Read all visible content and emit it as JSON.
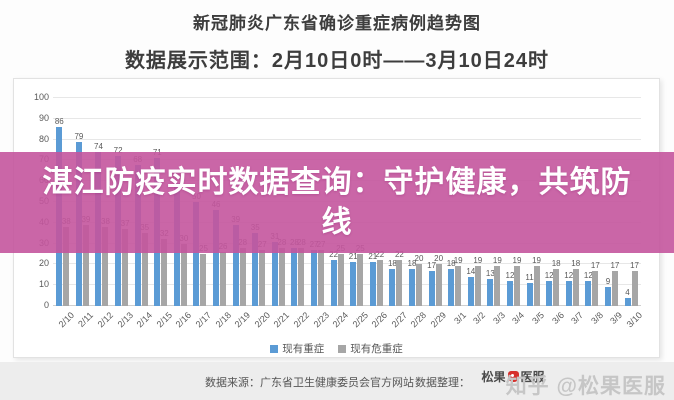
{
  "header": {
    "title": "新冠肺炎广东省确诊重症病例趋势图",
    "subtitle": "数据展示范围：2月10日0时——3月10日24时"
  },
  "overlay": {
    "text": "湛江防疫实时数据查询：守护健康，共筑防线"
  },
  "chart_data": {
    "type": "bar",
    "title": "新冠肺炎广东省确诊重症病例趋势图",
    "categories": [
      "2/10",
      "2/11",
      "2/12",
      "2/13",
      "2/14",
      "2/15",
      "2/16",
      "2/17",
      "2/18",
      "2/19",
      "2/20",
      "2/21",
      "2/22",
      "2/23",
      "2/24",
      "2/25",
      "2/26",
      "2/27",
      "2/28",
      "2/29",
      "3/1",
      "3/2",
      "3/3",
      "3/4",
      "3/5",
      "3/6",
      "3/7",
      "3/8",
      "3/9",
      "3/10"
    ],
    "series": [
      {
        "name": "现有重症",
        "color": "#5B9BD5",
        "values": [
          86,
          79,
          74,
          72,
          68,
          71,
          59,
          50,
          46,
          39,
          35,
          31,
          28,
          27,
          22,
          21,
          21,
          18,
          18,
          17,
          18,
          14,
          13,
          12,
          11,
          12,
          12,
          12,
          9,
          4
        ]
      },
      {
        "name": "现有危重症",
        "color": "#A6A6A6",
        "values": [
          38,
          39,
          38,
          37,
          35,
          32,
          30,
          25,
          26,
          28,
          27,
          28,
          28,
          27,
          25,
          25,
          22,
          22,
          20,
          20,
          19,
          19,
          19,
          19,
          19,
          18,
          18,
          17,
          17,
          17
        ]
      }
    ],
    "xlabel": "",
    "ylabel": "",
    "ylim": [
      0,
      100
    ],
    "yticks": [
      0,
      10,
      20,
      30,
      40,
      50,
      60,
      70,
      80,
      90,
      100
    ],
    "grid": true,
    "data_labels": true,
    "legend_position": "bottom"
  },
  "footer": {
    "source_label": "数据来源：广东省卫生健康委员会官方网站",
    "editor_label": "数据整理：",
    "logo_left": "松果",
    "logo_right": "医服",
    "watermark": "知乎 @松果医服"
  },
  "colors": {
    "banner": "#c4559d",
    "severe_bar": "#5B9BD5",
    "critical_bar": "#A6A6A6",
    "title_text": "#3d3d3d",
    "footer_bg": "#ededed",
    "watermark_text": "#c6c6c6"
  }
}
